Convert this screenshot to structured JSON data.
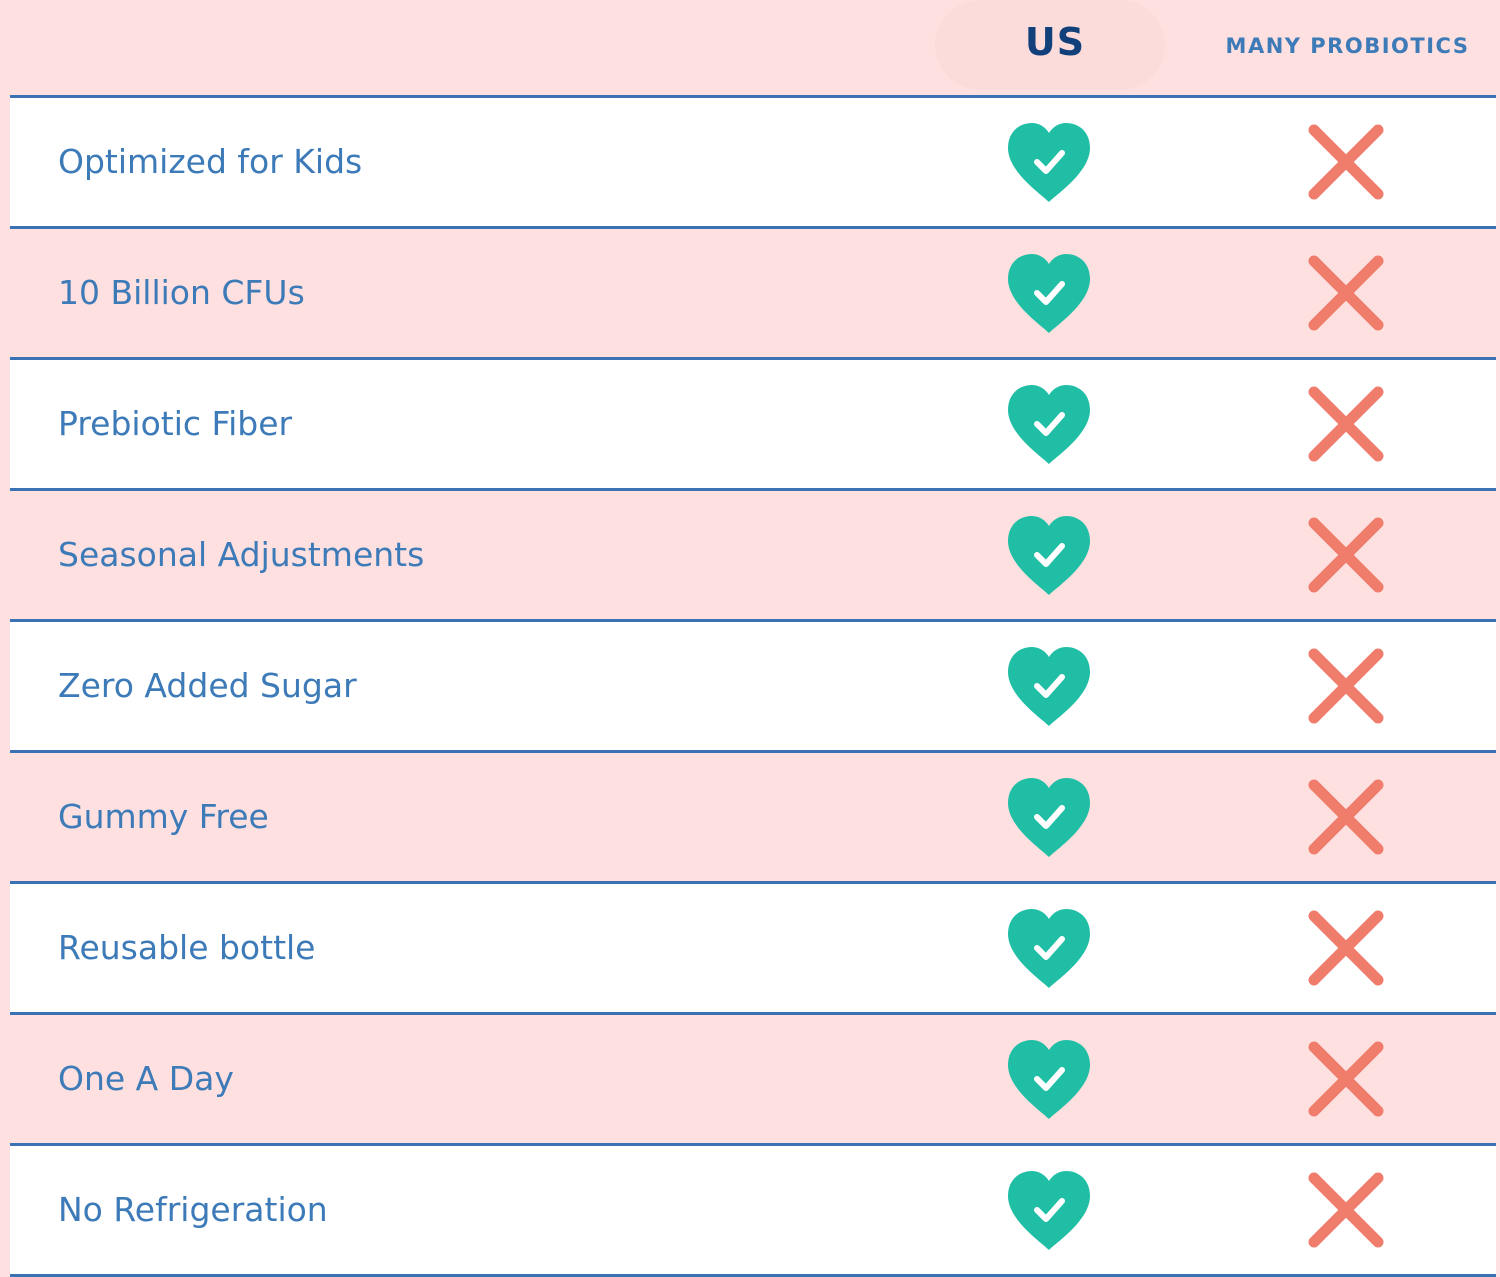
{
  "header": {
    "us_label": "US",
    "competitor_label": "MANY PROBIOTICS"
  },
  "colors": {
    "background_pink": "#fde0df",
    "row_white": "#ffffff",
    "divider_blue": "#3b72b3",
    "label_blue": "#3d7ab8",
    "us_navy": "#11407a",
    "heart_teal": "#1fbea5",
    "cross_coral": "#f07c6c"
  },
  "rows": [
    {
      "label": "Optimized for Kids",
      "us": "heart-check-icon",
      "competitor": "cross-icon"
    },
    {
      "label": "10 Billion CFUs",
      "us": "heart-check-icon",
      "competitor": "cross-icon"
    },
    {
      "label": "Prebiotic Fiber",
      "us": "heart-check-icon",
      "competitor": "cross-icon"
    },
    {
      "label": "Seasonal Adjustments",
      "us": "heart-check-icon",
      "competitor": "cross-icon"
    },
    {
      "label": "Zero Added Sugar",
      "us": "heart-check-icon",
      "competitor": "cross-icon"
    },
    {
      "label": "Gummy Free",
      "us": "heart-check-icon",
      "competitor": "cross-icon"
    },
    {
      "label": "Reusable bottle",
      "us": "heart-check-icon",
      "competitor": "cross-icon"
    },
    {
      "label": "One A Day",
      "us": "heart-check-icon",
      "competitor": "cross-icon"
    },
    {
      "label": "No Refrigeration",
      "us": "heart-check-icon",
      "competitor": "cross-icon"
    }
  ]
}
